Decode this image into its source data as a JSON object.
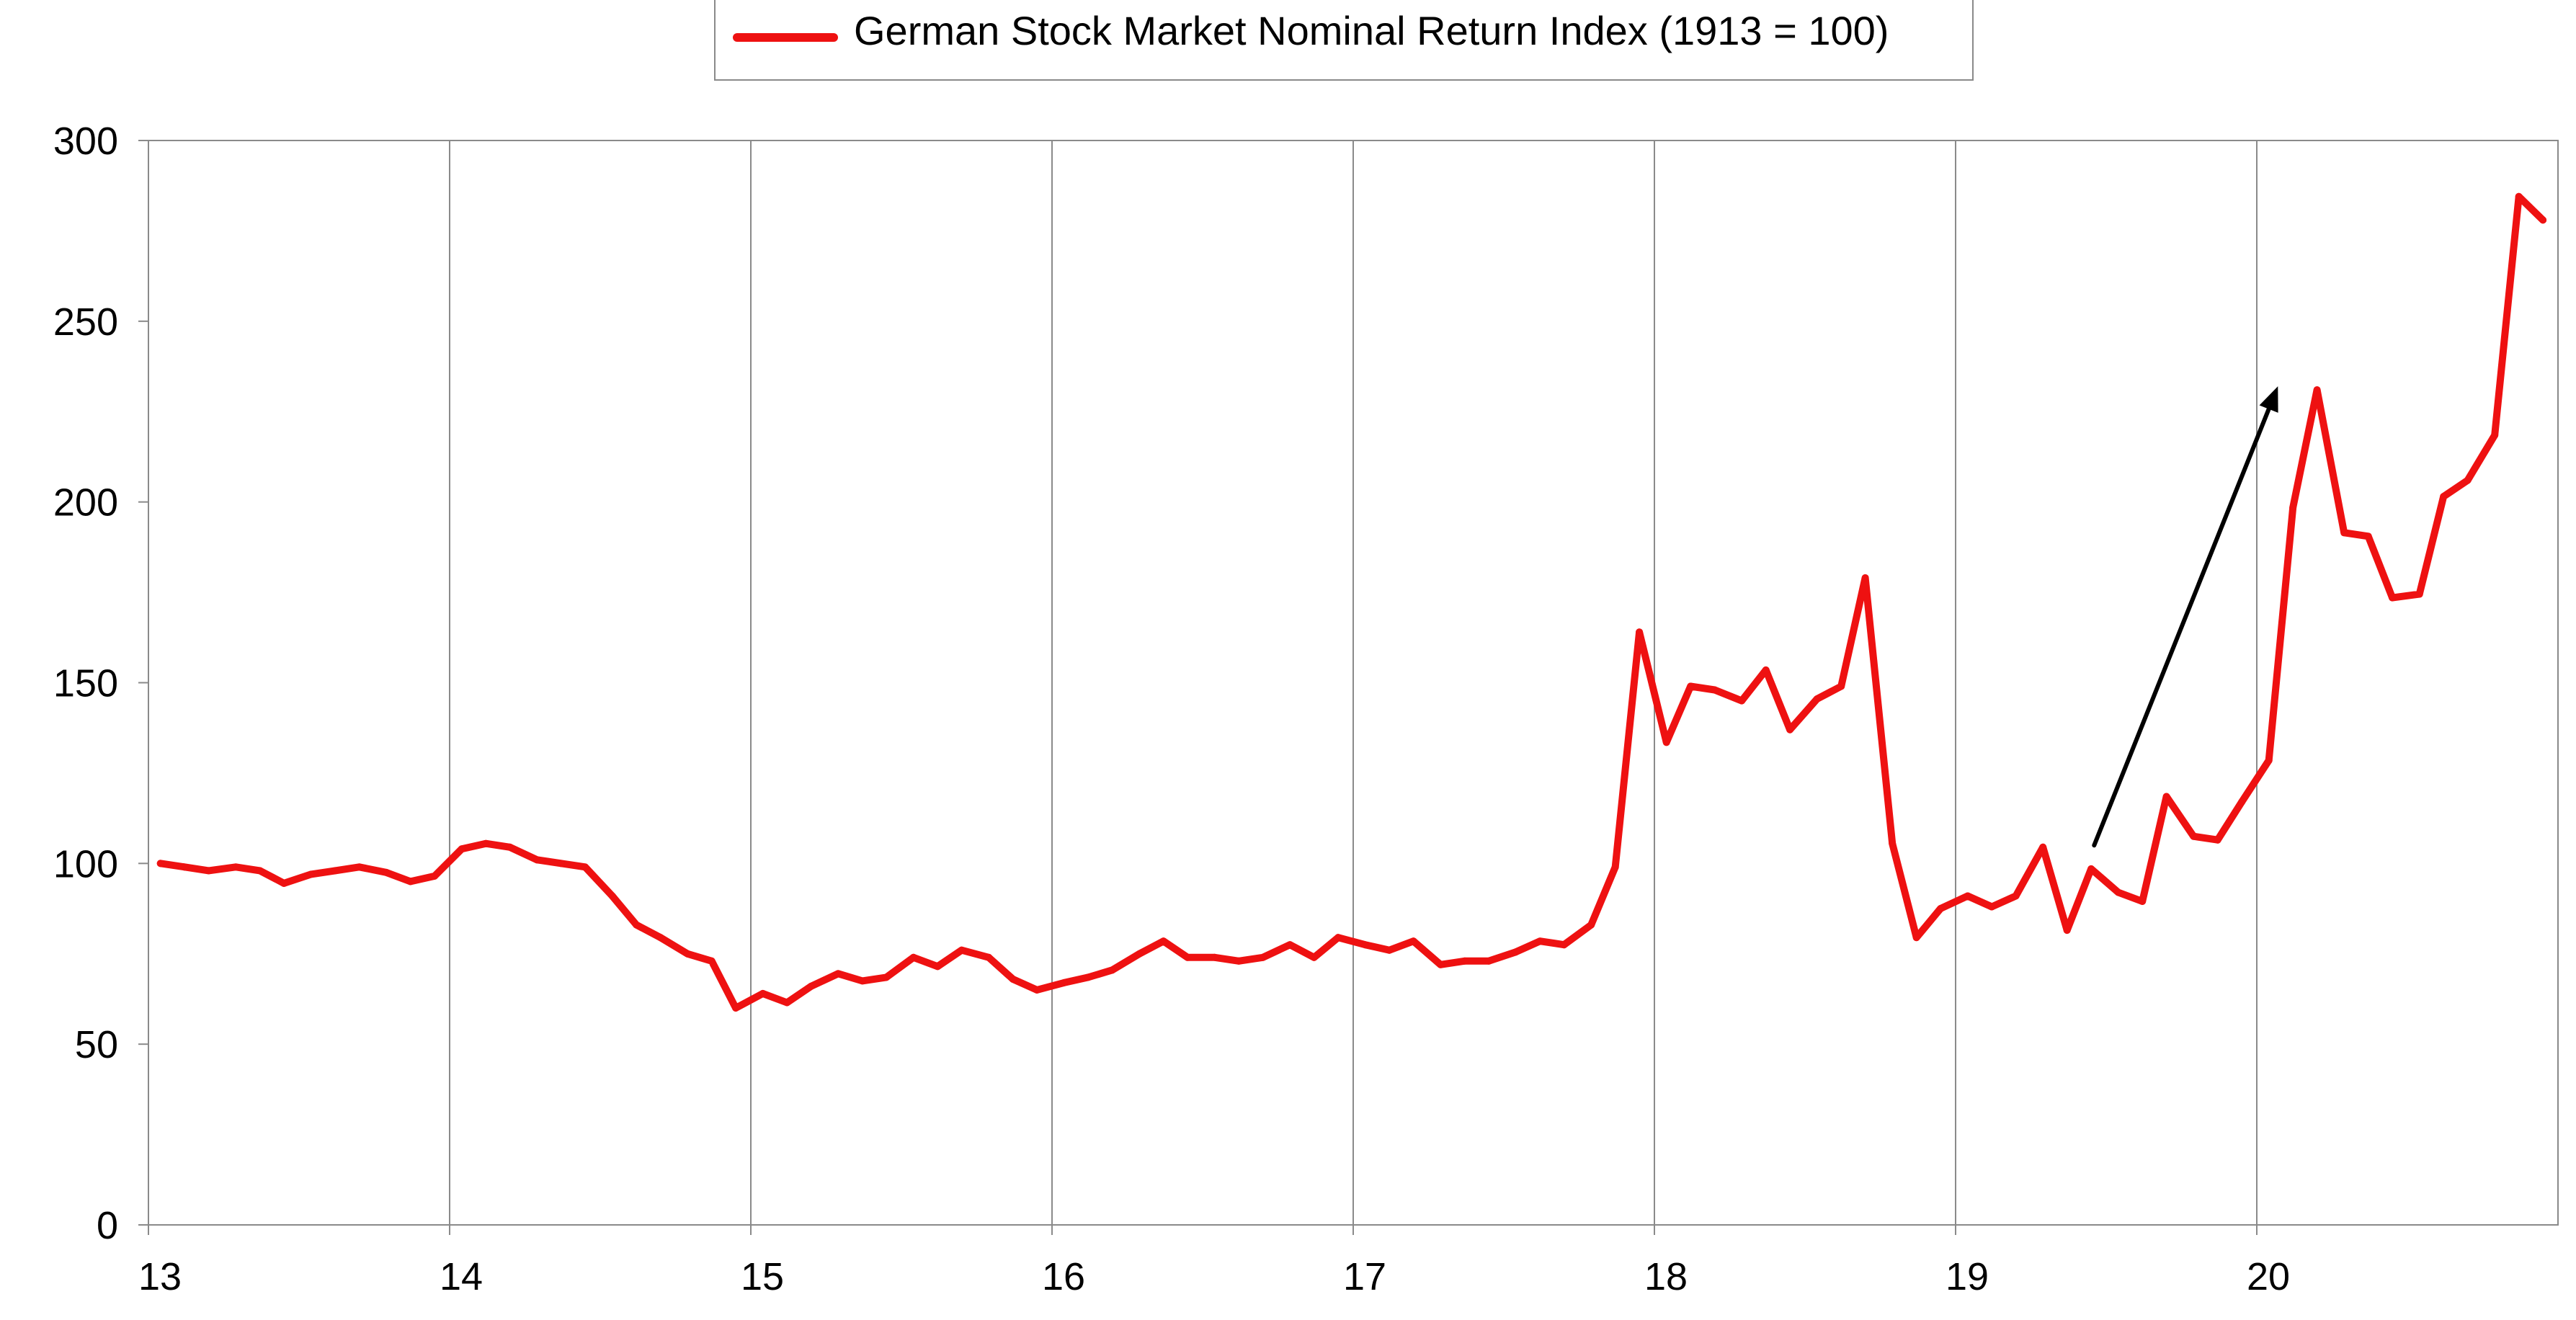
{
  "chart_data": {
    "type": "line",
    "title": "",
    "xlabel": "",
    "ylabel": "",
    "xlim": [
      13,
      21
    ],
    "ylim": [
      0,
      300
    ],
    "y_ticks": [
      0,
      50,
      100,
      150,
      200,
      250,
      300
    ],
    "x_ticks": [
      13,
      14,
      15,
      16,
      17,
      18,
      19,
      20
    ],
    "x_tick_labels": [
      "13",
      "14",
      "15",
      "16",
      "17",
      "18",
      "19",
      "20"
    ],
    "grid": "vertical lines at each year",
    "legend": "top-center",
    "series": [
      {
        "name": "German Stock Market Nominal Return Index (1913 = 100)",
        "color": "#ee1111",
        "x": [
          13.04,
          13.12,
          13.2,
          13.29,
          13.37,
          13.45,
          13.54,
          13.62,
          13.7,
          13.79,
          13.87,
          13.95,
          14.04,
          14.12,
          14.2,
          14.29,
          14.37,
          14.45,
          14.54,
          14.62,
          14.7,
          14.79,
          14.87,
          14.95,
          15.04,
          15.12,
          15.2,
          15.29,
          15.37,
          15.45,
          15.54,
          15.62,
          15.7,
          15.79,
          15.87,
          15.95,
          16.04,
          16.12,
          16.2,
          16.29,
          16.37,
          16.45,
          16.54,
          16.62,
          16.7,
          16.79,
          16.87,
          16.95,
          17.04,
          17.12,
          17.2,
          17.29,
          17.37,
          17.45,
          17.54,
          17.62,
          17.7,
          17.79,
          17.87,
          17.95,
          18.04,
          18.12,
          18.2,
          18.29,
          18.37,
          18.45,
          18.54,
          18.62,
          18.7,
          18.79,
          18.87,
          18.95,
          19.04,
          19.12,
          19.2,
          19.29,
          19.37,
          19.45,
          19.54,
          19.62,
          19.7,
          19.79,
          19.87,
          19.95,
          20.04,
          20.12,
          20.2,
          20.29,
          20.37,
          20.45,
          20.54,
          20.62,
          20.7,
          20.79,
          20.87,
          20.95
        ],
        "values": [
          100,
          99,
          98,
          99,
          98,
          94.5,
          97,
          98,
          99,
          97.5,
          95,
          96.5,
          104,
          105.5,
          104.5,
          101,
          100,
          99,
          91,
          83,
          79.5,
          75,
          73,
          60,
          64,
          61.5,
          66,
          69.5,
          67.5,
          68.5,
          74,
          71.5,
          76,
          74,
          68,
          65,
          67,
          68.5,
          70.5,
          75,
          78.5,
          74,
          74,
          73,
          74,
          77.5,
          74,
          79.5,
          77.5,
          76,
          78.5,
          72,
          73,
          73,
          75.5,
          78.5,
          77.5,
          83,
          99,
          164,
          133.5,
          149,
          148,
          145,
          153.5,
          137,
          145.5,
          149,
          179,
          105.5,
          79.5,
          87.5,
          91,
          88,
          91,
          104.5,
          81.5,
          98.5,
          92,
          89.5,
          118.5,
          107.5,
          106.5,
          117,
          128.5,
          198.5,
          231,
          191.5,
          190.5,
          173.5,
          174.5,
          201.5,
          206,
          218.5,
          284.5,
          278
        ]
      }
    ],
    "annotations": [
      {
        "type": "arrow",
        "from": [
          19.46,
          105
        ],
        "to": [
          20.07,
          232
        ],
        "color": "#000000"
      }
    ]
  }
}
